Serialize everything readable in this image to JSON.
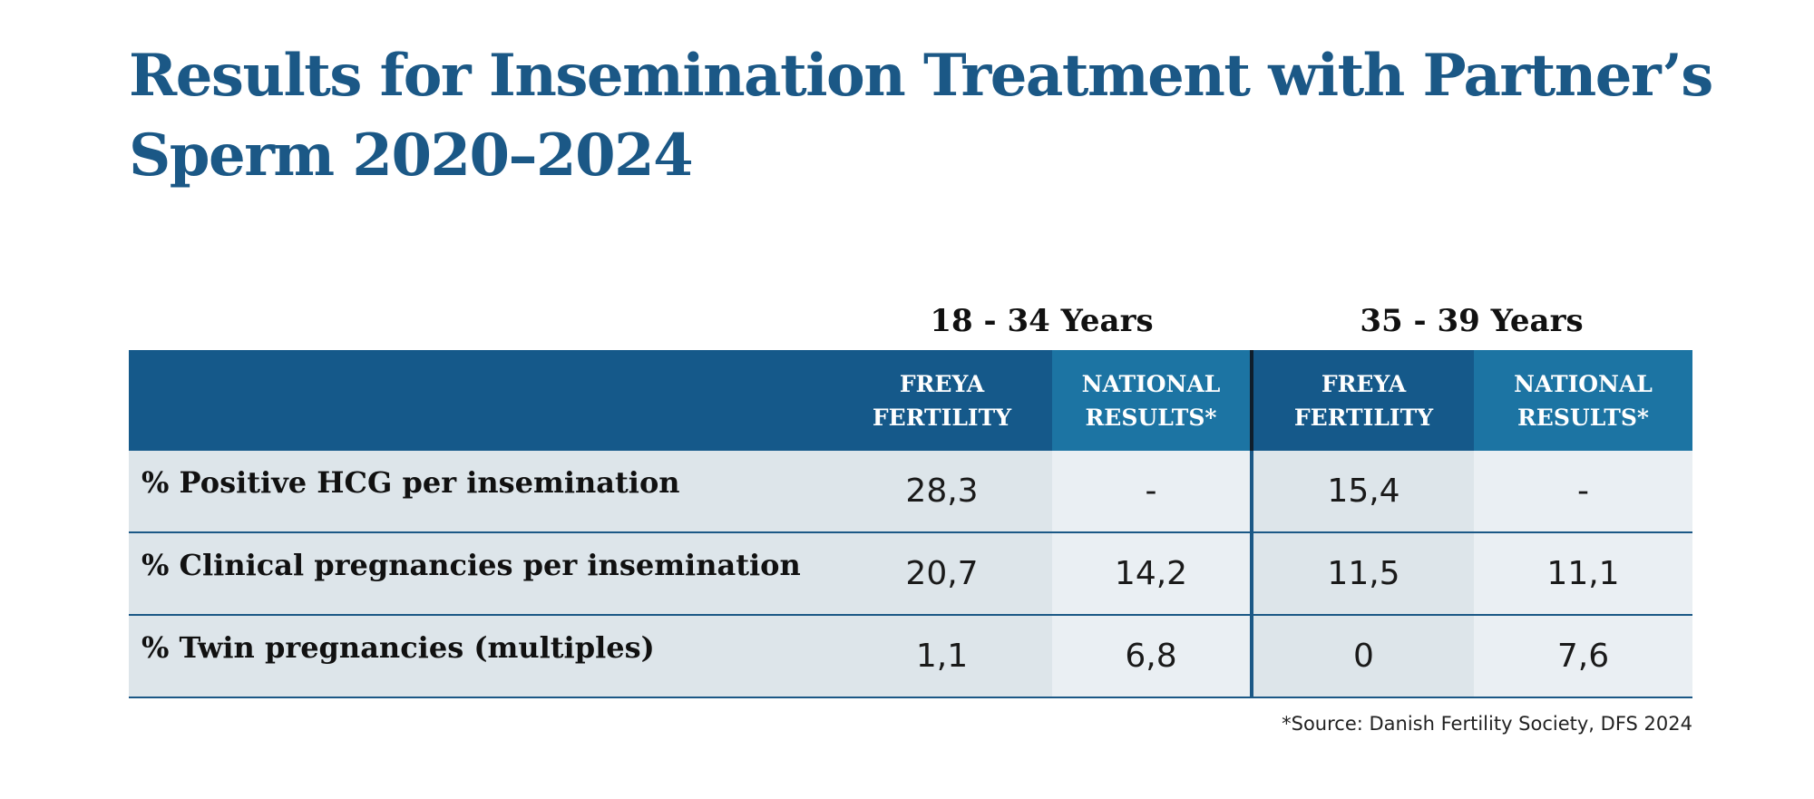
{
  "title": "Results for Insemination Treatment with Partner’s Sperm 2020–2024",
  "groups": [
    "18 - 34 Years",
    "35 - 39 Years"
  ],
  "columns": {
    "freya": [
      "FREYA",
      "FERTILITY"
    ],
    "national": [
      "NATIONAL",
      "RESULTS*"
    ]
  },
  "rows": [
    {
      "label": "% Positive HCG per insemination",
      "values": [
        "28,3",
        "-",
        "15,4",
        "-"
      ]
    },
    {
      "label": "% Clinical pregnancies per insemination",
      "values": [
        "20,7",
        "14,2",
        "11,5",
        "11,1"
      ]
    },
    {
      "label": "% Twin pregnancies (multiples)",
      "values": [
        "1,1",
        "6,8",
        "0",
        "7,6"
      ]
    }
  ],
  "source": "*Source: Danish Fertility Society, DFS 2024",
  "colors": {
    "title": "#1b5886",
    "header_dark": "#15598a",
    "header_light": "#1c74a3",
    "row_cell_a": "#dde5ea",
    "row_cell_b": "#eaeff3"
  }
}
